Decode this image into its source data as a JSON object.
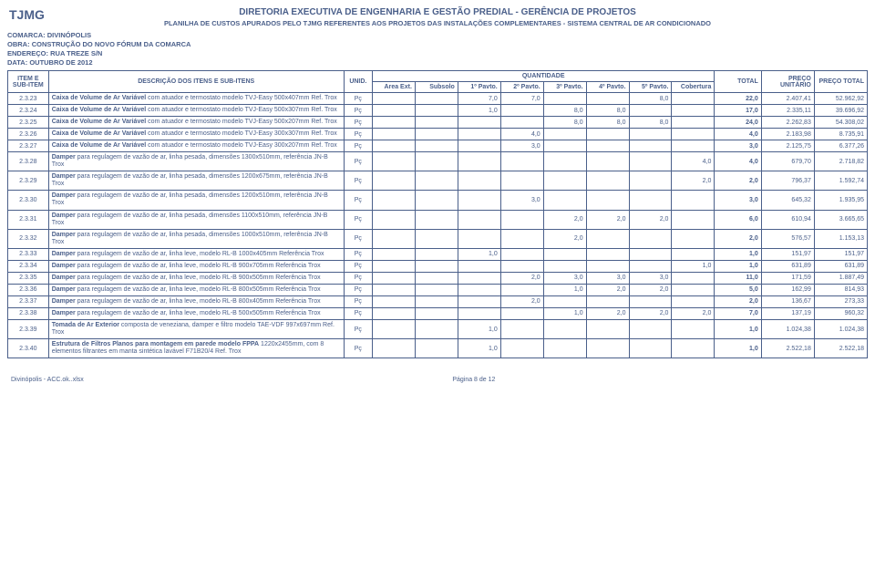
{
  "header": {
    "logo": "TJMG",
    "title1": "DIRETORIA EXECUTIVA DE ENGENHARIA E GESTÃO PREDIAL - GERÊNCIA DE PROJETOS",
    "title2": "PLANILHA DE CUSTOS APURADOS PELO TJMG REFERENTES AOS PROJETOS DAS INSTALAÇÕES COMPLEMENTARES - SISTEMA CENTRAL DE AR CONDICIONADO"
  },
  "meta": {
    "comarca_label": "COMARCA:",
    "comarca": "DIVINÓPOLIS",
    "obra_label": "OBRA:",
    "obra": "CONSTRUÇÃO DO NOVO FÓRUM DA COMARCA",
    "endereco_label": "ENDEREÇO:",
    "endereco": "RUA TREZE S/N",
    "data_label": "DATA:",
    "data": "OUTUBRO DE 2012"
  },
  "columns": {
    "item": "ITEM E SUB-ITEM",
    "desc": "DESCRIÇÃO DOS ITENS E SUB-ITENS",
    "unid": "UNID.",
    "qty_group": "QUANTIDADE",
    "area_ext": "Area Ext.",
    "subsolo": "Subsolo",
    "p1": "1º Pavto.",
    "p2": "2º Pavto.",
    "p3": "3º Pavto.",
    "p4": "4º Pavto.",
    "p5": "5º Pavto.",
    "cobertura": "Cobertura",
    "total": "TOTAL",
    "preco_unit": "PREÇO UNITÁRIO",
    "preco_total": "PREÇO TOTAL"
  },
  "rows": [
    {
      "id": "2.3.23",
      "desc_bold": "Caixa de Volume de Ar Variável",
      "desc_rest": " com atuador e termostato modelo TVJ-Easy 500x407mm Ref. Trox",
      "unid": "Pç",
      "q": [
        "",
        "",
        "7,0",
        "7,0",
        "",
        "",
        "8,0",
        ""
      ],
      "total": "22,0",
      "pu": "2.407,41",
      "pt": "52.962,92"
    },
    {
      "id": "2.3.24",
      "desc_bold": "Caixa de Volume de Ar Variável",
      "desc_rest": " com atuador e termostato modelo TVJ-Easy 500x307mm Ref. Trox",
      "unid": "Pç",
      "q": [
        "",
        "",
        "1,0",
        "",
        "8,0",
        "8,0",
        "",
        ""
      ],
      "total": "17,0",
      "pu": "2.335,11",
      "pt": "39.696,92"
    },
    {
      "id": "2.3.25",
      "desc_bold": "Caixa de Volume de Ar Variável",
      "desc_rest": " com atuador e termostato modelo TVJ-Easy 500x207mm Ref. Trox",
      "unid": "Pç",
      "q": [
        "",
        "",
        "",
        "",
        "8,0",
        "8,0",
        "8,0",
        ""
      ],
      "total": "24,0",
      "pu": "2.262,83",
      "pt": "54.308,02"
    },
    {
      "id": "2.3.26",
      "desc_bold": "Caixa de Volume de Ar Variável",
      "desc_rest": " com atuador e termostato modelo TVJ-Easy 300x307mm Ref. Trox",
      "unid": "Pç",
      "q": [
        "",
        "",
        "",
        "4,0",
        "",
        "",
        "",
        ""
      ],
      "total": "4,0",
      "pu": "2.183,98",
      "pt": "8.735,91"
    },
    {
      "id": "2.3.27",
      "desc_bold": "Caixa de Volume de Ar Variável",
      "desc_rest": " com atuador e termostato modelo TVJ-Easy 300x207mm Ref. Trox",
      "unid": "Pç",
      "q": [
        "",
        "",
        "",
        "3,0",
        "",
        "",
        "",
        ""
      ],
      "total": "3,0",
      "pu": "2.125,75",
      "pt": "6.377,26"
    },
    {
      "id": "2.3.28",
      "desc_bold": "Damper",
      "desc_rest": " para regulagem de vazão de ar, linha pesada, dimensões 1300x510mm, referência JN-B Trox",
      "unid": "Pç",
      "q": [
        "",
        "",
        "",
        "",
        "",
        "",
        "",
        "4,0"
      ],
      "total": "4,0",
      "pu": "679,70",
      "pt": "2.718,82"
    },
    {
      "id": "2.3.29",
      "desc_bold": "Damper",
      "desc_rest": " para regulagem de vazão de ar, linha pesada, dimensões 1200x675mm, referência JN-B Trox",
      "unid": "Pç",
      "q": [
        "",
        "",
        "",
        "",
        "",
        "",
        "",
        "2,0"
      ],
      "total": "2,0",
      "pu": "796,37",
      "pt": "1.592,74"
    },
    {
      "id": "2.3.30",
      "desc_bold": "Damper",
      "desc_rest": " para regulagem de vazão de ar, linha pesada, dimensões 1200x510mm, referência JN-B Trox",
      "unid": "Pç",
      "q": [
        "",
        "",
        "",
        "3,0",
        "",
        "",
        "",
        ""
      ],
      "total": "3,0",
      "pu": "645,32",
      "pt": "1.935,95"
    },
    {
      "id": "2.3.31",
      "desc_bold": "Damper",
      "desc_rest": " para regulagem de vazão de ar, linha pesada, dimensões 1100x510mm, referência JN-B Trox",
      "unid": "Pç",
      "q": [
        "",
        "",
        "",
        "",
        "2,0",
        "2,0",
        "2,0",
        ""
      ],
      "total": "6,0",
      "pu": "610,94",
      "pt": "3.665,65"
    },
    {
      "id": "2.3.32",
      "desc_bold": "Damper",
      "desc_rest": " para regulagem de vazão de ar, linha pesada, dimensões 1000x510mm, referência JN-B Trox",
      "unid": "Pç",
      "q": [
        "",
        "",
        "",
        "",
        "2,0",
        "",
        "",
        ""
      ],
      "total": "2,0",
      "pu": "576,57",
      "pt": "1.153,13"
    },
    {
      "id": "2.3.33",
      "desc_bold": "Damper",
      "desc_rest": " para regulagem de vazão de ar, linha leve, modelo RL-B 1000x405mm Referência Trox",
      "unid": "Pç",
      "q": [
        "",
        "",
        "1,0",
        "",
        "",
        "",
        "",
        ""
      ],
      "total": "1,0",
      "pu": "151,97",
      "pt": "151,97"
    },
    {
      "id": "2.3.34",
      "desc_bold": "Damper",
      "desc_rest": " para regulagem de vazão de ar, linha leve, modelo RL-B 900x705mm Referência Trox",
      "unid": "Pç",
      "q": [
        "",
        "",
        "",
        "",
        "",
        "",
        "",
        "1,0"
      ],
      "total": "1,0",
      "pu": "631,89",
      "pt": "631,89"
    },
    {
      "id": "2.3.35",
      "desc_bold": "Damper",
      "desc_rest": " para regulagem de vazão de ar, linha leve, modelo RL-B 900x505mm Referência Trox",
      "unid": "Pç",
      "q": [
        "",
        "",
        "",
        "2,0",
        "3,0",
        "3,0",
        "3,0",
        ""
      ],
      "total": "11,0",
      "pu": "171,59",
      "pt": "1.887,49"
    },
    {
      "id": "2.3.36",
      "desc_bold": "Damper",
      "desc_rest": " para regulagem de vazão de ar, linha leve, modelo RL-B 800x505mm Referência Trox",
      "unid": "Pç",
      "q": [
        "",
        "",
        "",
        "",
        "1,0",
        "2,0",
        "2,0",
        ""
      ],
      "total": "5,0",
      "pu": "162,99",
      "pt": "814,93"
    },
    {
      "id": "2.3.37",
      "desc_bold": "Damper",
      "desc_rest": " para regulagem de vazão de ar, linha leve, modelo RL-B 800x405mm Referência Trox",
      "unid": "Pç",
      "q": [
        "",
        "",
        "",
        "2,0",
        "",
        "",
        "",
        ""
      ],
      "total": "2,0",
      "pu": "136,67",
      "pt": "273,33"
    },
    {
      "id": "2.3.38",
      "desc_bold": "Damper",
      "desc_rest": " para regulagem de vazão de ar, linha leve, modelo RL-B 500x505mm Referência Trox",
      "unid": "Pç",
      "q": [
        "",
        "",
        "",
        "",
        "1,0",
        "2,0",
        "2,0",
        "2,0"
      ],
      "total": "7,0",
      "pu": "137,19",
      "pt": "960,32"
    },
    {
      "id": "2.3.39",
      "desc_bold": "Tomada de Ar Exterior",
      "desc_rest": " composta de veneziana, damper e filtro modelo TAE-VDF 997x697mm Ref. Trox",
      "unid": "Pç",
      "q": [
        "",
        "",
        "1,0",
        "",
        "",
        "",
        "",
        ""
      ],
      "total": "1,0",
      "pu": "1.024,38",
      "pt": "1.024,38"
    },
    {
      "id": "2.3.40",
      "desc_bold": "Estrutura de Filtros Planos para montagem em parede modelo FPPA",
      "desc_rest": " 1220x2455mm, com 8 elementos filtrantes em manta sintética lavável F71B20/4 Ref. Trox",
      "unid": "Pç",
      "q": [
        "",
        "",
        "1,0",
        "",
        "",
        "",
        "",
        ""
      ],
      "total": "1,0",
      "pu": "2.522,18",
      "pt": "2.522,18"
    }
  ],
  "footer": {
    "left": "Divinópolis - ACC.ok..xlsx",
    "center": "Página 8 de 12"
  }
}
